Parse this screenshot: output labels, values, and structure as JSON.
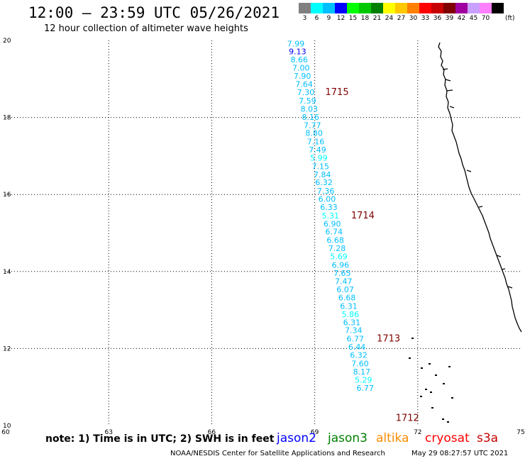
{
  "header": {
    "title": "12:00 – 23:59 UTC 05/26/2021",
    "subtitle": "12 hour collection of altimeter wave heights"
  },
  "legend": {
    "labels": [
      "3",
      "6",
      "9",
      "12",
      "15",
      "18",
      "21",
      "24",
      "27",
      "30",
      "33",
      "36",
      "39",
      "42",
      "45",
      "70"
    ],
    "unit": "(ft)",
    "colors": [
      "#808080",
      "#00ffff",
      "#00bfff",
      "#0000ff",
      "#00ff00",
      "#00c800",
      "#008000",
      "#ffff00",
      "#ffc800",
      "#ff8000",
      "#ff0000",
      "#c80000",
      "#800000",
      "#a000a0",
      "#c8a0ff",
      "#ff80ff",
      "#000000"
    ]
  },
  "map": {
    "lon_range": [
      60,
      75
    ],
    "lat_range": [
      10,
      20
    ],
    "lon_ticks": [
      "60",
      "63",
      "66",
      "69",
      "72",
      "75"
    ],
    "lat_ticks": [
      "10",
      "12",
      "14",
      "16",
      "18",
      "20"
    ],
    "grid": true,
    "coast_color": "#000000"
  },
  "track": {
    "values": [
      {
        "label": "7.99",
        "lat": 19.84,
        "lon": 68.45,
        "color": "#00bfff"
      },
      {
        "label": "9.13",
        "lat": 19.64,
        "lon": 68.5,
        "color": "#0000ff"
      },
      {
        "label": "8.66",
        "lat": 19.43,
        "lon": 68.55,
        "color": "#00bfff"
      },
      {
        "label": "7.00",
        "lat": 19.22,
        "lon": 68.6,
        "color": "#00bfff"
      },
      {
        "label": "7.90",
        "lat": 19.01,
        "lon": 68.64,
        "color": "#00bfff"
      },
      {
        "label": "7.64",
        "lat": 18.79,
        "lon": 68.69,
        "color": "#00bfff"
      },
      {
        "label": "7.30",
        "lat": 18.58,
        "lon": 68.74,
        "color": "#00bfff"
      },
      {
        "label": "7.59",
        "lat": 18.36,
        "lon": 68.79,
        "color": "#00bfff"
      },
      {
        "label": "8.03",
        "lat": 18.15,
        "lon": 68.84,
        "color": "#00bfff"
      },
      {
        "label": "8.16",
        "lat": 17.94,
        "lon": 68.88,
        "color": "#00bfff"
      },
      {
        "label": "7.77",
        "lat": 17.73,
        "lon": 68.93,
        "color": "#00bfff"
      },
      {
        "label": "8.80",
        "lat": 17.52,
        "lon": 68.98,
        "color": "#00bfff"
      },
      {
        "label": "7.16",
        "lat": 17.3,
        "lon": 69.03,
        "color": "#00bfff"
      },
      {
        "label": "7.49",
        "lat": 17.09,
        "lon": 69.08,
        "color": "#00bfff"
      },
      {
        "label": "5.99",
        "lat": 16.88,
        "lon": 69.12,
        "color": "#00ffff"
      },
      {
        "label": "7.15",
        "lat": 16.66,
        "lon": 69.17,
        "color": "#00bfff"
      },
      {
        "label": "7.84",
        "lat": 16.45,
        "lon": 69.22,
        "color": "#00bfff"
      },
      {
        "label": "6.32",
        "lat": 16.24,
        "lon": 69.27,
        "color": "#00bfff"
      },
      {
        "label": "7.36",
        "lat": 16.02,
        "lon": 69.32,
        "color": "#00bfff"
      },
      {
        "label": "6.00",
        "lat": 15.81,
        "lon": 69.36,
        "color": "#00bfff"
      },
      {
        "label": "6.33",
        "lat": 15.6,
        "lon": 69.41,
        "color": "#00bfff"
      },
      {
        "label": "5.31",
        "lat": 15.38,
        "lon": 69.46,
        "color": "#00ffff"
      },
      {
        "label": "6.90",
        "lat": 15.17,
        "lon": 69.51,
        "color": "#00bfff"
      },
      {
        "label": "6.74",
        "lat": 14.96,
        "lon": 69.56,
        "color": "#00bfff"
      },
      {
        "label": "6.68",
        "lat": 14.74,
        "lon": 69.6,
        "color": "#00bfff"
      },
      {
        "label": "7.28",
        "lat": 14.53,
        "lon": 69.65,
        "color": "#00bfff"
      },
      {
        "label": "5.69",
        "lat": 14.32,
        "lon": 69.7,
        "color": "#00ffff"
      },
      {
        "label": "6.96",
        "lat": 14.1,
        "lon": 69.75,
        "color": "#00bfff"
      },
      {
        "label": "7.65",
        "lat": 13.89,
        "lon": 69.8,
        "color": "#00bfff"
      },
      {
        "label": "7.47",
        "lat": 13.67,
        "lon": 69.84,
        "color": "#00bfff"
      },
      {
        "label": "6.07",
        "lat": 13.46,
        "lon": 69.89,
        "color": "#00bfff"
      },
      {
        "label": "6.68",
        "lat": 13.25,
        "lon": 69.94,
        "color": "#00bfff"
      },
      {
        "label": "6.31",
        "lat": 13.03,
        "lon": 69.99,
        "color": "#00bfff"
      },
      {
        "label": "5.86",
        "lat": 12.82,
        "lon": 70.04,
        "color": "#00ffff"
      },
      {
        "label": "6.31",
        "lat": 12.61,
        "lon": 70.08,
        "color": "#00bfff"
      },
      {
        "label": "7.34",
        "lat": 12.4,
        "lon": 70.13,
        "color": "#00bfff"
      },
      {
        "label": "6.77",
        "lat": 12.18,
        "lon": 70.18,
        "color": "#00bfff"
      },
      {
        "label": "6.44",
        "lat": 11.97,
        "lon": 70.23,
        "color": "#00bfff"
      },
      {
        "label": "6.32",
        "lat": 11.76,
        "lon": 70.28,
        "color": "#00bfff"
      },
      {
        "label": "7.60",
        "lat": 11.54,
        "lon": 70.32,
        "color": "#00bfff"
      },
      {
        "label": "8.17",
        "lat": 11.33,
        "lon": 70.37,
        "color": "#00bfff"
      },
      {
        "label": "5.29",
        "lat": 11.11,
        "lon": 70.42,
        "color": "#00ffff"
      },
      {
        "label": "6.77",
        "lat": 10.9,
        "lon": 70.47,
        "color": "#00bfff"
      }
    ]
  },
  "times": [
    {
      "label": "1715",
      "lat": 18.58,
      "lon": 69.65,
      "color": "#800000"
    },
    {
      "label": "1714",
      "lat": 15.38,
      "lon": 70.4,
      "color": "#800000"
    },
    {
      "label": "1713",
      "lat": 12.18,
      "lon": 71.15,
      "color": "#800000"
    },
    {
      "label": "1712",
      "lat": 10.12,
      "lon": 71.7,
      "color": "#800000"
    }
  ],
  "footer": {
    "note": "note:  1) Time is in UTC;  2) SWH is in feet",
    "satellites": [
      {
        "name": "jason2",
        "color": "#0000ff"
      },
      {
        "name": "jason3",
        "color": "#008000"
      },
      {
        "name": "altika",
        "color": "#ff8c00"
      },
      {
        "name": "cryosat",
        "color": "#ff0000"
      },
      {
        "name": "s3a",
        "color": "#c80000"
      }
    ],
    "credit": "NOAA/NESDIS Center for Satellite Applications and Research",
    "timestamp": "May 29 08:27:57 UTC 2021"
  }
}
